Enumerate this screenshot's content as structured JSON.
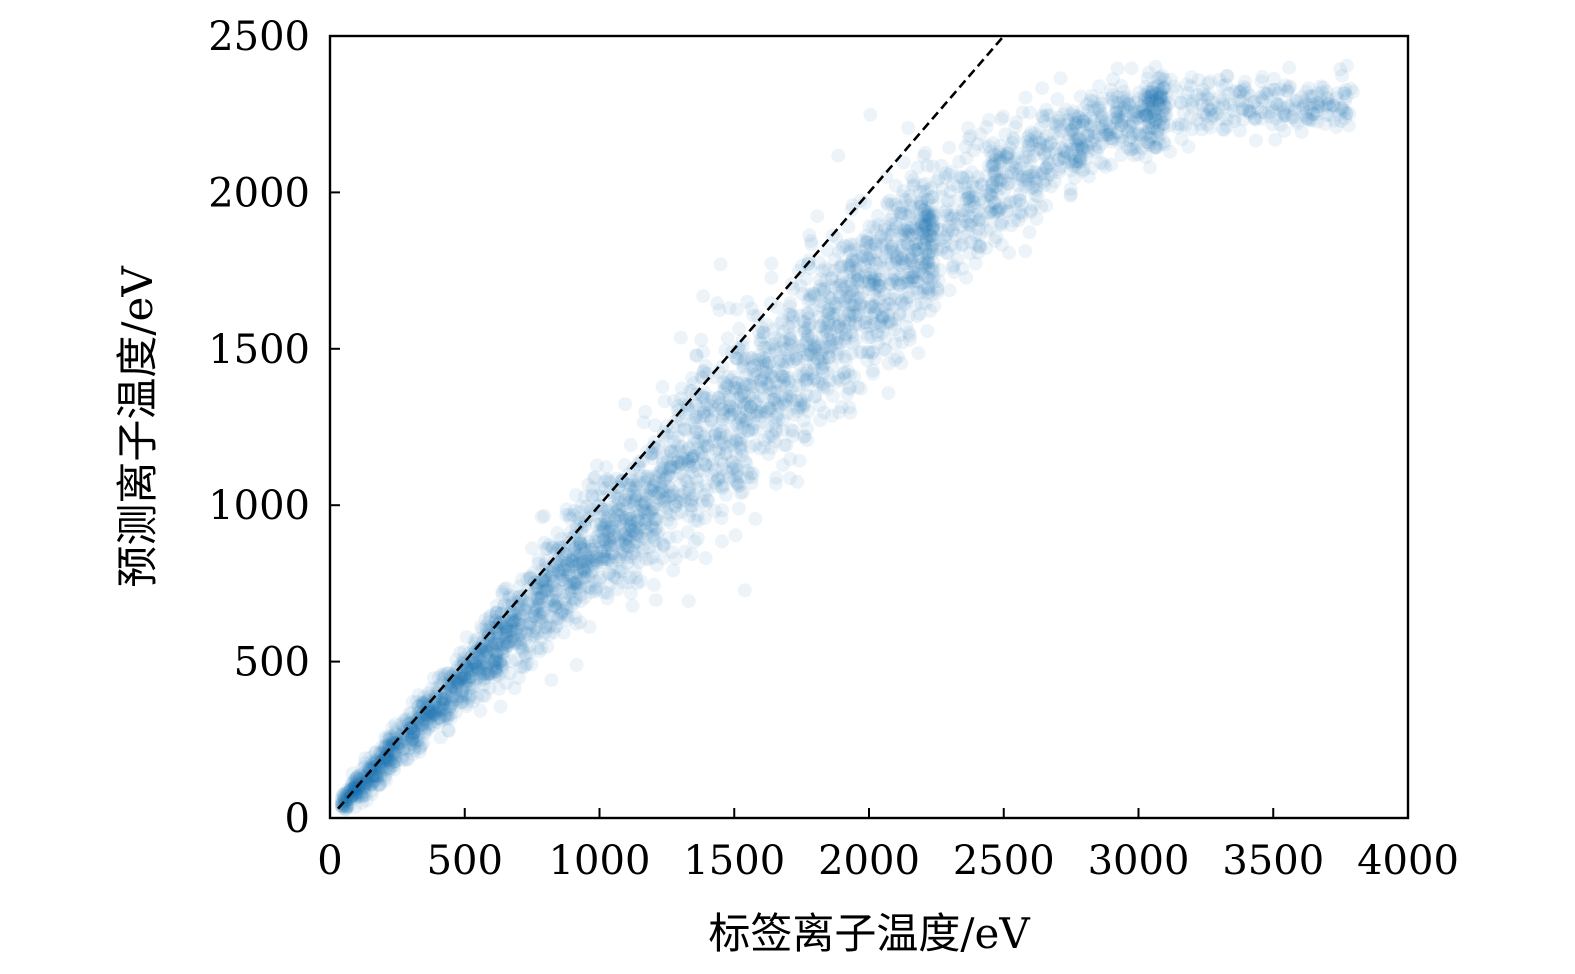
{
  "chart_data": {
    "type": "scatter",
    "title": "",
    "xlabel": "标签离子温度/eV",
    "ylabel": "预测离子温度/eV",
    "xlim": [
      0,
      4000
    ],
    "ylim": [
      0,
      2500
    ],
    "xticks": [
      "0",
      "500",
      "1000",
      "1500",
      "2000",
      "2500",
      "3000",
      "3500",
      "4000"
    ],
    "yticks": [
      "0",
      "500",
      "1000",
      "1500",
      "2000",
      "2500"
    ],
    "grid": false,
    "legend": "none",
    "point_color": "#1f77b4",
    "point_alpha": 0.08,
    "reference_line": {
      "style": "dashed",
      "color": "#000000",
      "from": [
        30,
        30
      ],
      "to": [
        2500,
        2500
      ]
    },
    "series": [
      {
        "band_x": [
          40,
          100,
          200,
          300,
          400,
          500,
          600,
          700,
          800,
          900,
          1000,
          1100,
          1200,
          1300,
          1400,
          1500,
          1600,
          1700,
          1800,
          1900,
          2000,
          2100,
          2200,
          2300,
          2400,
          2500,
          2600,
          2700,
          2800,
          2900,
          3000,
          3100,
          3200,
          3300,
          3400
        ],
        "band_center": [
          40,
          95,
          185,
          275,
          360,
          450,
          535,
          620,
          710,
          800,
          880,
          960,
          1040,
          1120,
          1200,
          1280,
          1360,
          1440,
          1520,
          1600,
          1680,
          1760,
          1840,
          1910,
          1980,
          2040,
          2090,
          2140,
          2180,
          2210,
          2240,
          2260,
          2270,
          2280,
          2290
        ],
        "band_halfwidth": [
          30,
          45,
          60,
          70,
          80,
          90,
          110,
          130,
          150,
          170,
          190,
          210,
          230,
          240,
          250,
          260,
          270,
          270,
          260,
          250,
          240,
          230,
          220,
          200,
          190,
          170,
          160,
          150,
          140,
          130,
          120,
          110,
          100,
          90,
          80
        ]
      }
    ]
  }
}
